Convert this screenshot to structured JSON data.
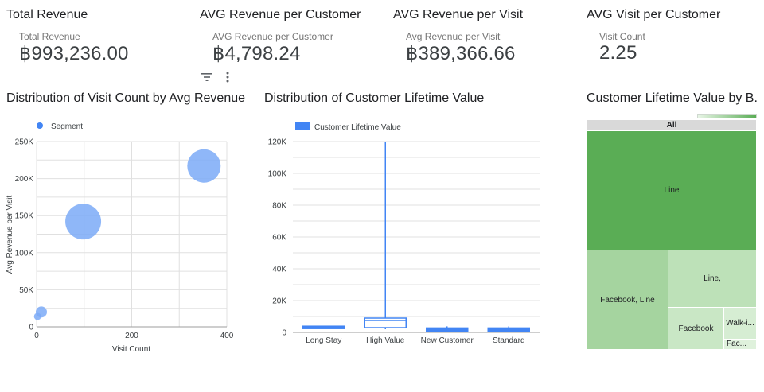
{
  "kpis": [
    {
      "header": "Total Revenue",
      "label": "Total Revenue",
      "value": "฿993,236.00"
    },
    {
      "header": "AVG Revenue per Customer",
      "label": "AVG Revenue per Customer",
      "value": "฿4,798.24"
    },
    {
      "header": "AVG Revenue per Visit",
      "label": "Avg Revenue per Visit",
      "value": "฿389,366.66"
    },
    {
      "header": "AVG Visit per Customer",
      "label": "Visit Count",
      "value": "2.25"
    }
  ],
  "toolbar": {
    "filter_icon": "filter-icon",
    "more_icon": "more-vert-icon"
  },
  "colors": {
    "blue": "#4285f4",
    "bubble": "#7baaf7",
    "green_dark": "#5aad55",
    "green_light": "#bde1b8",
    "green_mid": "#a5d49f",
    "grid": "#e0e0e0"
  },
  "chart_data": [
    {
      "type": "scatter",
      "title": "Distribution of Visit Count by Avg Revenue ...",
      "xlabel": "Visit Count",
      "ylabel": "Avg Revenue per Visit",
      "legend": [
        "Segment"
      ],
      "xlim": [
        0,
        400
      ],
      "ylim": [
        0,
        250000
      ],
      "x_ticks": [
        "0",
        "200",
        "400"
      ],
      "y_ticks": [
        "0",
        "50K",
        "100K",
        "150K",
        "200K",
        "250K"
      ],
      "points": [
        {
          "x": 352,
          "y": 217000,
          "size": 42
        },
        {
          "x": 98,
          "y": 142000,
          "size": 45
        },
        {
          "x": 10,
          "y": 20000,
          "size": 14
        },
        {
          "x": 2,
          "y": 14000,
          "size": 9
        }
      ]
    },
    {
      "type": "boxplot",
      "title": "Distribution of Customer Lifetime Value",
      "legend": [
        "Customer Lifetime Value"
      ],
      "ylim": [
        0,
        120000
      ],
      "y_ticks": [
        "0",
        "20K",
        "40K",
        "60K",
        "80K",
        "100K",
        "120K"
      ],
      "categories": [
        "Long Stay",
        "High Value",
        "New Customer",
        "Standard"
      ],
      "boxes": [
        {
          "min": 2500,
          "q1": 2700,
          "median": 3300,
          "q3": 3900,
          "max": 4100,
          "filled": true
        },
        {
          "min": 2000,
          "q1": 3000,
          "median": 7500,
          "q3": 9000,
          "max": 120000,
          "filled": false
        },
        {
          "min": 400,
          "q1": 700,
          "median": 2000,
          "q3": 2800,
          "max": 3800,
          "filled": true
        },
        {
          "min": 400,
          "q1": 700,
          "median": 2000,
          "q3": 2800,
          "max": 3800,
          "filled": true
        }
      ]
    },
    {
      "type": "treemap",
      "title": "Customer Lifetime Value by B...",
      "root_label": "All",
      "nodes": [
        "Line",
        "Facebook, Line",
        "Line,",
        "Facebook",
        "Walk-i...",
        "Fac..."
      ]
    }
  ]
}
